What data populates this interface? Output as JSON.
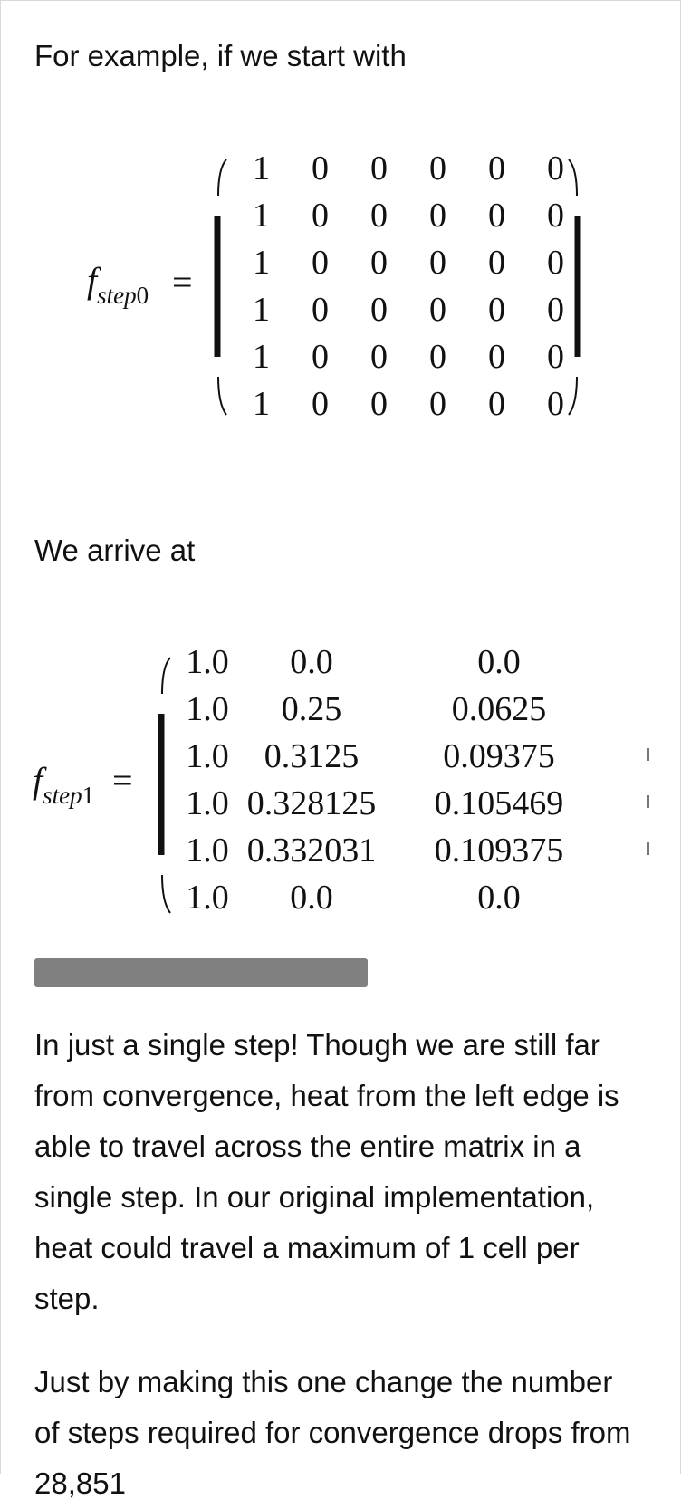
{
  "intro_text": "For example, if we start with",
  "math1": {
    "func": "f",
    "sub": "step",
    "sub_index": "0",
    "equals": "=",
    "rows": [
      [
        "1",
        "0",
        "0",
        "0",
        "0",
        "0"
      ],
      [
        "1",
        "0",
        "0",
        "0",
        "0",
        "0"
      ],
      [
        "1",
        "0",
        "0",
        "0",
        "0",
        "0"
      ],
      [
        "1",
        "0",
        "0",
        "0",
        "0",
        "0"
      ],
      [
        "1",
        "0",
        "0",
        "0",
        "0",
        "0"
      ],
      [
        "1",
        "0",
        "0",
        "0",
        "0",
        "0"
      ]
    ]
  },
  "arrive_text": "We arrive at",
  "math2": {
    "func": "f",
    "sub": "step",
    "sub_index": "1",
    "equals": "=",
    "rows": [
      [
        "1.0",
        "0.0",
        "0.0"
      ],
      [
        "1.0",
        "0.25",
        "0.0625"
      ],
      [
        "1.0",
        "0.3125",
        "0.09375"
      ],
      [
        "1.0",
        "0.328125",
        "0.105469"
      ],
      [
        "1.0",
        "0.332031",
        "0.109375"
      ],
      [
        "1.0",
        "0.0",
        "0.0"
      ]
    ]
  },
  "paragraph1": "In just a single step! Though we are still far from convergence, heat from the left edge is able to travel across the entire matrix in a single step. In our original implementation, heat could travel a maximum of 1 cell per step.",
  "paragraph2": "Just by making this one change the number of steps required for convergence drops from 28,851"
}
